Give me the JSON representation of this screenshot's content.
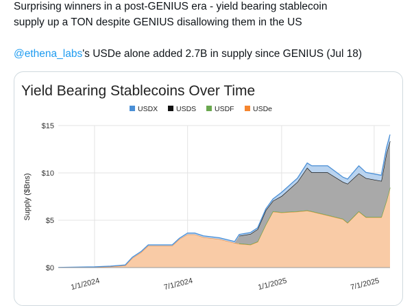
{
  "tweet": {
    "line1": "Surprising winners in a post-GENIUS era - yield bearing stablecoin",
    "line2": "supply up a TON despite GENIUS disallowing them in the US",
    "mention": "@ethena_labs",
    "line3_rest": "'s USDe alone added 2.7B in supply since GENIUS (Jul 18)"
  },
  "colors": {
    "link": "#1d9bf0",
    "USDX": "#4a8fd6",
    "USDS": "#111111",
    "USDF": "#6aa84f",
    "USDe": "#f5862f"
  },
  "chart_data": {
    "type": "area",
    "stacked": true,
    "title": "Yield Bearing Stablecoins Over Time",
    "ylabel": "Supply ($Bns)",
    "xlabel": "",
    "ylim": [
      0,
      15
    ],
    "xlim": [
      "2023-10-22",
      "2025-08-01"
    ],
    "yticks": [
      "$0",
      "$5",
      "$10",
      "$15"
    ],
    "ytick_values": [
      0,
      5,
      10,
      15
    ],
    "xticks": [
      "1/1/2024",
      "7/1/2024",
      "1/1/2025",
      "7/1/2025"
    ],
    "xtick_dates": [
      "2024-01-01",
      "2024-07-01",
      "2025-01-01",
      "2025-07-01"
    ],
    "legend": [
      "USDX",
      "USDS",
      "USDF",
      "USDe"
    ],
    "legend_position": "top",
    "grid": true,
    "x": [
      "2023-10-22",
      "2024-01-01",
      "2024-02-01",
      "2024-03-01",
      "2024-03-15",
      "2024-04-01",
      "2024-04-15",
      "2024-05-01",
      "2024-06-01",
      "2024-06-15",
      "2024-07-01",
      "2024-07-15",
      "2024-08-01",
      "2024-09-01",
      "2024-10-01",
      "2024-10-10",
      "2024-11-01",
      "2024-11-15",
      "2024-12-01",
      "2024-12-15",
      "2025-01-01",
      "2025-02-01",
      "2025-02-20",
      "2025-03-01",
      "2025-04-01",
      "2025-05-01",
      "2025-05-10",
      "2025-06-01",
      "2025-06-15",
      "2025-07-15",
      "2025-07-25",
      "2025-08-01"
    ],
    "series": [
      {
        "name": "USDe",
        "values": [
          0,
          0.05,
          0.1,
          0.2,
          1.0,
          1.6,
          2.3,
          2.3,
          2.3,
          3.0,
          3.5,
          3.5,
          3.2,
          3.0,
          2.6,
          2.5,
          2.4,
          2.7,
          4.5,
          5.9,
          5.8,
          5.9,
          6.0,
          5.9,
          5.5,
          5.1,
          4.7,
          5.9,
          5.3,
          5.3,
          7.0,
          8.4
        ]
      },
      {
        "name": "USDF",
        "values": [
          0,
          0,
          0,
          0,
          0,
          0,
          0,
          0,
          0,
          0,
          0,
          0,
          0,
          0,
          0,
          0.05,
          0.05,
          0.05,
          0.05,
          0.05,
          0.05,
          0.05,
          0.05,
          0.05,
          0.05,
          0.05,
          0.05,
          0.05,
          0.05,
          0.05,
          0.05,
          0.05
        ]
      },
      {
        "name": "USDS",
        "values": [
          0,
          0,
          0,
          0,
          0,
          0,
          0,
          0,
          0,
          0,
          0,
          0,
          0,
          0,
          0,
          0.8,
          1.1,
          1.3,
          1.5,
          1.1,
          1.7,
          3.1,
          4.5,
          4.1,
          4.5,
          3.9,
          4.1,
          4.0,
          4.1,
          3.8,
          5.0,
          4.9
        ]
      },
      {
        "name": "USDX",
        "values": [
          0.02,
          0.03,
          0.05,
          0.08,
          0.1,
          0.1,
          0.1,
          0.1,
          0.1,
          0.1,
          0.15,
          0.15,
          0.15,
          0.15,
          0.15,
          0.15,
          0.15,
          0.15,
          0.15,
          0.2,
          0.4,
          0.4,
          0.5,
          0.7,
          0.7,
          0.5,
          0.5,
          0.8,
          0.6,
          0.6,
          0.6,
          0.7
        ]
      }
    ]
  }
}
